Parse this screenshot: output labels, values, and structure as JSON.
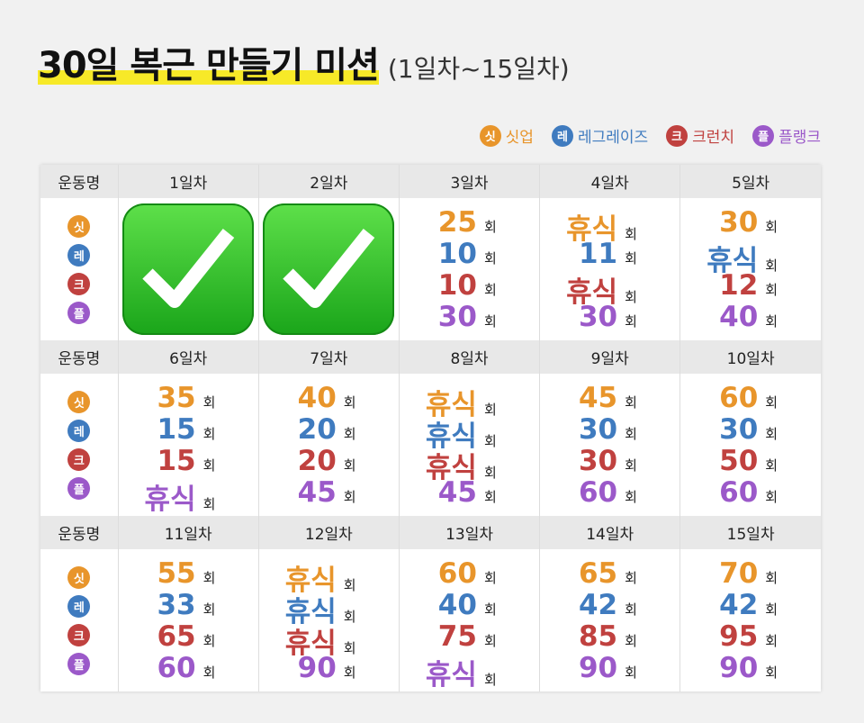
{
  "title": "30일 복근 만들기 미션",
  "subtitle": "(1일차~15일차)",
  "colors": {
    "situp": "#e8952b",
    "legraise": "#3f7bbf",
    "crunch": "#c0413f",
    "plank": "#9b59c9",
    "highlight": "#f7e928",
    "check": "#22b422"
  },
  "legend": [
    {
      "badge": "싯",
      "label": "싯업",
      "key": "situp"
    },
    {
      "badge": "레",
      "label": "레그레이즈",
      "key": "legraise"
    },
    {
      "badge": "크",
      "label": "크런치",
      "key": "crunch"
    },
    {
      "badge": "플",
      "label": "플랭크",
      "key": "plank"
    }
  ],
  "row_header": "운동명",
  "unit": "회",
  "days": [
    {
      "label": "1일차",
      "done": true
    },
    {
      "label": "2일차",
      "done": true
    },
    {
      "label": "3일차",
      "values": [
        "25",
        "10",
        "10",
        "30"
      ]
    },
    {
      "label": "4일차",
      "values": [
        "휴식",
        "11",
        "휴식",
        "30"
      ]
    },
    {
      "label": "5일차",
      "values": [
        "30",
        "휴식",
        "12",
        "40"
      ]
    },
    {
      "label": "6일차",
      "values": [
        "35",
        "15",
        "15",
        "휴식"
      ]
    },
    {
      "label": "7일차",
      "values": [
        "40",
        "20",
        "20",
        "45"
      ]
    },
    {
      "label": "8일차",
      "values": [
        "휴식",
        "휴식",
        "휴식",
        "45"
      ]
    },
    {
      "label": "9일차",
      "values": [
        "45",
        "30",
        "30",
        "60"
      ]
    },
    {
      "label": "10일차",
      "values": [
        "60",
        "30",
        "50",
        "60"
      ]
    },
    {
      "label": "11일차",
      "values": [
        "55",
        "33",
        "65",
        "60"
      ]
    },
    {
      "label": "12일차",
      "values": [
        "휴식",
        "휴식",
        "휴식",
        "90"
      ]
    },
    {
      "label": "13일차",
      "values": [
        "60",
        "40",
        "75",
        "휴식"
      ]
    },
    {
      "label": "14일차",
      "values": [
        "65",
        "42",
        "85",
        "90"
      ]
    },
    {
      "label": "15일차",
      "values": [
        "70",
        "42",
        "95",
        "90"
      ]
    }
  ]
}
